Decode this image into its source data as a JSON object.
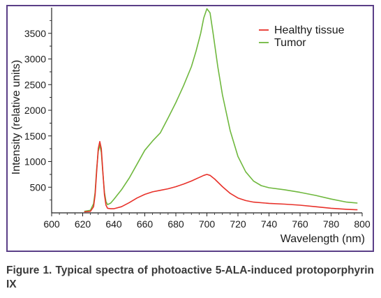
{
  "chart_data": {
    "type": "line",
    "title": "",
    "xlabel": "Wavelength (nm)",
    "ylabel": "Intensity (relative units)",
    "xlim": [
      600,
      800
    ],
    "ylim": [
      0,
      4000
    ],
    "xticks": [
      "600",
      "620",
      "640",
      "660",
      "680",
      "700",
      "720",
      "740",
      "760",
      "780",
      "800"
    ],
    "yticks": [
      "500",
      "1000",
      "1500",
      "2000",
      "2500",
      "3000",
      "3500"
    ],
    "legend": "top-right",
    "grid": false,
    "series": [
      {
        "name": "Healthy tissue",
        "color": "#e8312a",
        "points": [
          [
            621,
            20
          ],
          [
            625,
            30
          ],
          [
            627,
            120
          ],
          [
            628,
            350
          ],
          [
            629,
            800
          ],
          [
            630,
            1250
          ],
          [
            631,
            1390
          ],
          [
            632,
            1250
          ],
          [
            633,
            800
          ],
          [
            634,
            350
          ],
          [
            635,
            150
          ],
          [
            636,
            90
          ],
          [
            638,
            80
          ],
          [
            640,
            80
          ],
          [
            645,
            120
          ],
          [
            650,
            200
          ],
          [
            655,
            290
          ],
          [
            660,
            360
          ],
          [
            665,
            410
          ],
          [
            670,
            440
          ],
          [
            675,
            470
          ],
          [
            680,
            510
          ],
          [
            685,
            560
          ],
          [
            690,
            620
          ],
          [
            695,
            690
          ],
          [
            698,
            730
          ],
          [
            700,
            750
          ],
          [
            702,
            730
          ],
          [
            705,
            660
          ],
          [
            710,
            510
          ],
          [
            715,
            380
          ],
          [
            720,
            290
          ],
          [
            725,
            240
          ],
          [
            730,
            210
          ],
          [
            740,
            185
          ],
          [
            750,
            170
          ],
          [
            760,
            150
          ],
          [
            770,
            120
          ],
          [
            780,
            90
          ],
          [
            790,
            70
          ],
          [
            797,
            60
          ]
        ]
      },
      {
        "name": "Tumor",
        "color": "#6fb83e",
        "points": [
          [
            621,
            30
          ],
          [
            625,
            50
          ],
          [
            627,
            180
          ],
          [
            628,
            400
          ],
          [
            629,
            850
          ],
          [
            630,
            1200
          ],
          [
            631,
            1320
          ],
          [
            632,
            1180
          ],
          [
            633,
            780
          ],
          [
            634,
            400
          ],
          [
            635,
            220
          ],
          [
            636,
            160
          ],
          [
            638,
            190
          ],
          [
            640,
            260
          ],
          [
            645,
            450
          ],
          [
            650,
            680
          ],
          [
            655,
            950
          ],
          [
            660,
            1220
          ],
          [
            665,
            1400
          ],
          [
            670,
            1560
          ],
          [
            675,
            1850
          ],
          [
            680,
            2150
          ],
          [
            685,
            2480
          ],
          [
            690,
            2850
          ],
          [
            693,
            3150
          ],
          [
            696,
            3500
          ],
          [
            698,
            3800
          ],
          [
            700,
            3980
          ],
          [
            702,
            3900
          ],
          [
            704,
            3500
          ],
          [
            707,
            2850
          ],
          [
            710,
            2300
          ],
          [
            715,
            1600
          ],
          [
            720,
            1100
          ],
          [
            725,
            800
          ],
          [
            730,
            620
          ],
          [
            735,
            530
          ],
          [
            740,
            490
          ],
          [
            750,
            450
          ],
          [
            760,
            400
          ],
          [
            770,
            340
          ],
          [
            780,
            270
          ],
          [
            790,
            210
          ],
          [
            797,
            190
          ]
        ]
      }
    ]
  },
  "caption": "Figure 1. Typical spectra of photoactive 5-ALA-induced protoporphyrin IX"
}
